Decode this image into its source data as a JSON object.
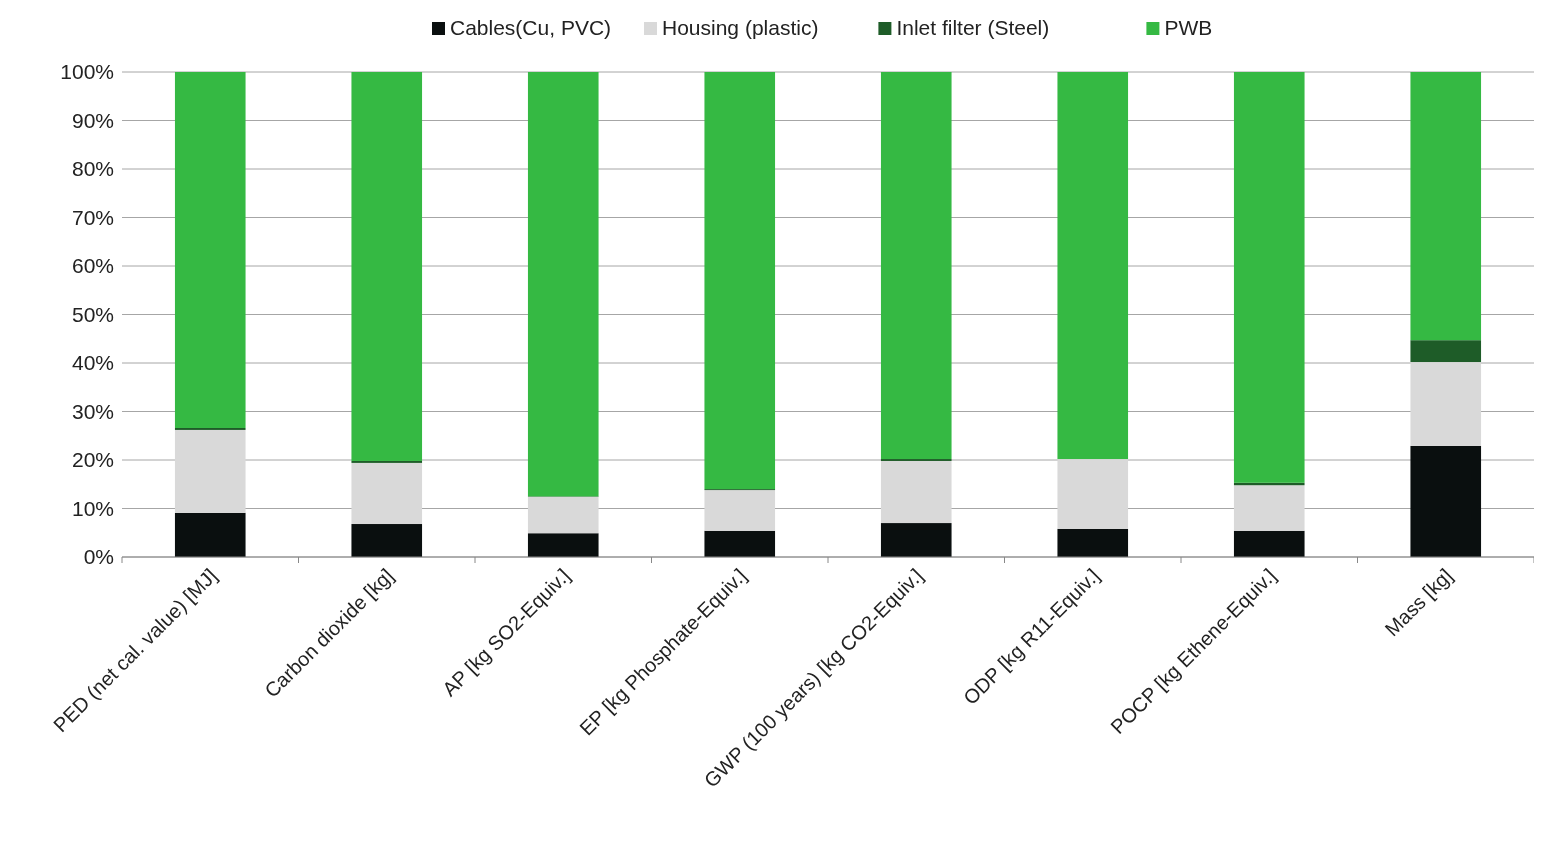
{
  "chart_data": {
    "type": "bar",
    "stacked": true,
    "legend": "top",
    "grid": "y",
    "categories": [
      "PED (net cal. value) [MJ]",
      "Carbon dioxide [kg]",
      "AP [kg SO2-Equiv.]",
      "EP [kg Phosphate-Equiv.]",
      "GWP (100 years) [kg CO2-Equiv.]",
      "ODP [kg R11-Equiv.]",
      "POCP [kg Ethene-Equiv.]",
      "Mass [kg]"
    ],
    "series": [
      {
        "name": "Cables(Cu, PVC)",
        "color": "#0a0f0f",
        "values": [
          9.1,
          6.8,
          4.9,
          5.4,
          7.0,
          5.8,
          5.4,
          22.9
        ]
      },
      {
        "name": "Housing (plastic)",
        "color": "#d9d9d9",
        "values": [
          17.1,
          12.6,
          7.5,
          8.4,
          12.8,
          14.4,
          9.4,
          17.3
        ]
      },
      {
        "name": "Inlet filter (Steel)",
        "color": "#1e5c28",
        "values": [
          0.4,
          0.4,
          0.1,
          0.2,
          0.4,
          null,
          0.5,
          4.5
        ]
      },
      {
        "name": "PWB",
        "color": "#35b943",
        "values": [
          73.4,
          80.2,
          87.5,
          86.0,
          79.8,
          79.8,
          84.7,
          55.3
        ]
      }
    ],
    "ylim": [
      0,
      100
    ],
    "yticks": [
      {
        "value": 0,
        "label": "0%"
      },
      {
        "value": 10,
        "label": "10%"
      },
      {
        "value": 20,
        "label": "20%"
      },
      {
        "value": 30,
        "label": "30%"
      },
      {
        "value": 40,
        "label": "40%"
      },
      {
        "value": 50,
        "label": "50%"
      },
      {
        "value": 60,
        "label": "60%"
      },
      {
        "value": 70,
        "label": "70%"
      },
      {
        "value": 80,
        "label": "80%"
      },
      {
        "value": 90,
        "label": "90%"
      },
      {
        "value": 100,
        "label": "100%"
      }
    ]
  }
}
